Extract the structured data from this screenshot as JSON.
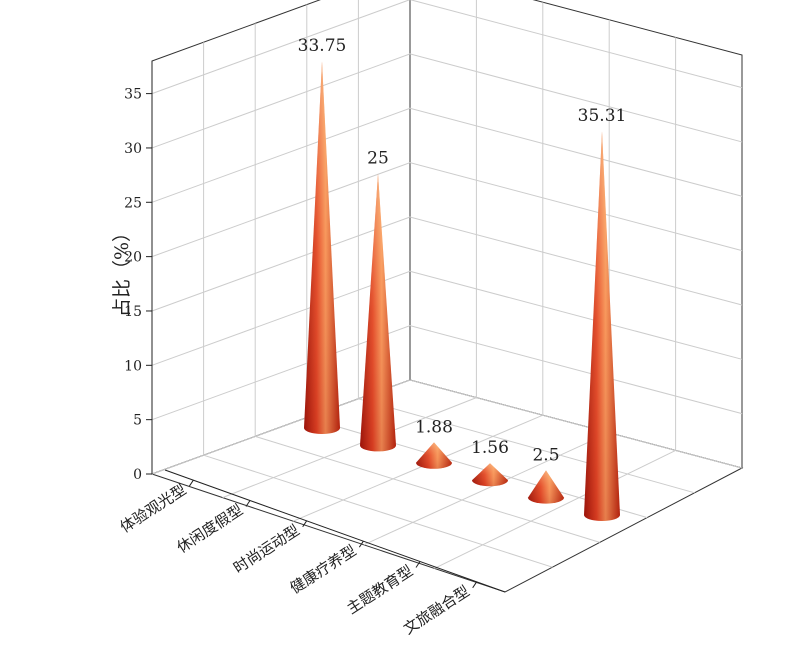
{
  "chart_data": {
    "type": "cone3d",
    "y_label": "占比（%）",
    "categories": [
      "体验观光型",
      "休闲度假型",
      "时尚运动型",
      "健康疗养型",
      "主题教育型",
      "文旅融合型"
    ],
    "values": [
      33.75,
      25,
      1.88,
      1.56,
      2.5,
      35.31
    ],
    "color": "#e0452a",
    "ylim": [
      0,
      38
    ],
    "yticks": [
      0,
      5,
      10,
      15,
      20,
      25,
      30,
      35
    ],
    "grid": true
  }
}
